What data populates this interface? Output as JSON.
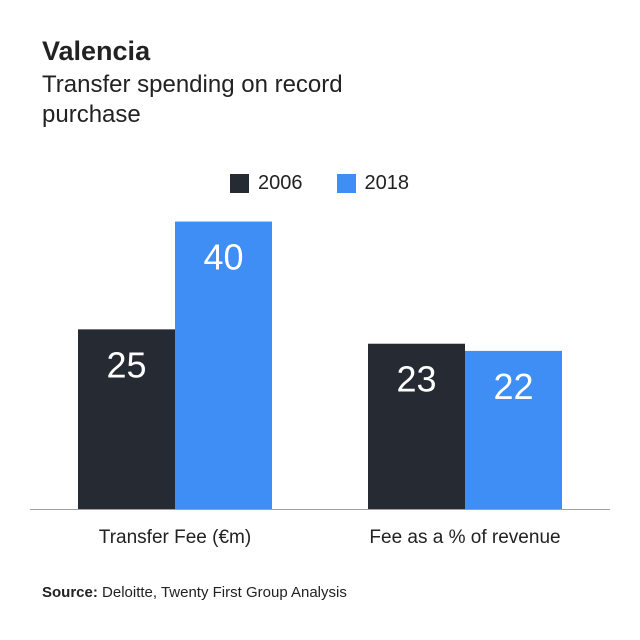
{
  "title": "Valencia",
  "subtitle": "Transfer spending on record purchase",
  "source": {
    "label": "Source:",
    "text": "Deloitte, Twenty First Group Analysis"
  },
  "colors": {
    "series_2006": "#262b33",
    "series_2018": "#3f8ef5",
    "axis": "#a0a0a0",
    "value_label": "#ffffff"
  },
  "chart_data": {
    "type": "bar",
    "title": "Valencia",
    "subtitle": "Transfer spending on record purchase",
    "categories": [
      "Transfer Fee (€m)",
      "Fee as a % of revenue"
    ],
    "series": [
      {
        "name": "2006",
        "values": [
          25,
          23
        ]
      },
      {
        "name": "2018",
        "values": [
          40,
          22
        ]
      }
    ],
    "xlabel": "",
    "ylabel": "",
    "ylim": [
      0,
      43
    ],
    "grid": false,
    "legend_position": "top-center",
    "data_labels": true
  }
}
